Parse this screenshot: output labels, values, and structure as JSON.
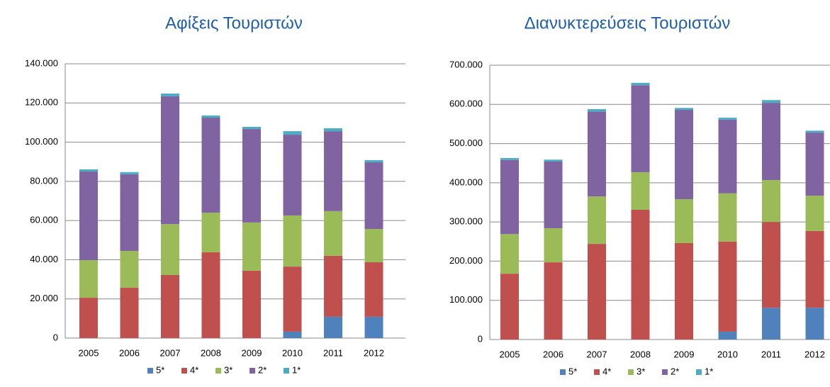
{
  "chart_data": [
    {
      "type": "stacked_bar",
      "title": "Αφίξεις Τουριστών",
      "categories": [
        "2005",
        "2006",
        "2007",
        "2008",
        "2009",
        "2010",
        "2011",
        "2012"
      ],
      "series": [
        {
          "name": "5*",
          "color": "#4f81bd",
          "values": [
            0,
            0,
            0,
            0,
            0,
            3300,
            10900,
            10900
          ]
        },
        {
          "name": "4*",
          "color": "#c0504d",
          "values": [
            20600,
            25700,
            32200,
            43800,
            34400,
            33200,
            31100,
            27800
          ]
        },
        {
          "name": "3*",
          "color": "#9bbb59",
          "values": [
            19200,
            18800,
            26000,
            20200,
            24600,
            26100,
            22800,
            17000
          ]
        },
        {
          "name": "2*",
          "color": "#8064a2",
          "values": [
            45200,
            39100,
            65200,
            48500,
            47700,
            41200,
            40800,
            34000
          ]
        },
        {
          "name": "1*",
          "color": "#4bacc6",
          "values": [
            1100,
            1100,
            1400,
            1100,
            1100,
            1800,
            1500,
            1100
          ]
        }
      ],
      "ylim": [
        0,
        140000
      ],
      "yticks": [
        0,
        {
          "value": 20000,
          "label": "20.000"
        },
        {
          "value": 40000,
          "label": "40.000"
        },
        {
          "value": 60000,
          "label": "60.000"
        },
        {
          "value": 80000,
          "label": "80.000"
        },
        {
          "value": 100000,
          "label": "100.000"
        },
        {
          "value": 120000,
          "label": "120.000"
        },
        {
          "value": 140000,
          "label": "140.000"
        }
      ],
      "grid": true,
      "legend": "bottom"
    },
    {
      "type": "stacked_bar",
      "title": "Διανυκτερεύσεις Τουριστών",
      "categories": [
        "2005",
        "2006",
        "2007",
        "2008",
        "2009",
        "2010",
        "2011",
        "2012"
      ],
      "series": [
        {
          "name": "5*",
          "color": "#4f81bd",
          "values": [
            0,
            0,
            0,
            0,
            0,
            20000,
            81000,
            81000
          ]
        },
        {
          "name": "4*",
          "color": "#c0504d",
          "values": [
            168000,
            197000,
            244000,
            331000,
            246000,
            230000,
            219000,
            196000
          ]
        },
        {
          "name": "3*",
          "color": "#9bbb59",
          "values": [
            101000,
            87000,
            121000,
            96000,
            112000,
            123000,
            107000,
            90000
          ]
        },
        {
          "name": "2*",
          "color": "#8064a2",
          "values": [
            189000,
            170000,
            217000,
            222000,
            228000,
            188000,
            197000,
            161000
          ]
        },
        {
          "name": "1*",
          "color": "#4bacc6",
          "values": [
            5000,
            5000,
            6000,
            6000,
            5000,
            5000,
            7000,
            5000
          ]
        }
      ],
      "ylim": [
        0,
        700000
      ],
      "yticks": [
        0,
        {
          "value": 100000,
          "label": "100.000"
        },
        {
          "value": 200000,
          "label": "200.000"
        },
        {
          "value": 300000,
          "label": "300.000"
        },
        {
          "value": 400000,
          "label": "400.000"
        },
        {
          "value": 500000,
          "label": "500.000"
        },
        {
          "value": 600000,
          "label": "600.000"
        },
        {
          "value": 700000,
          "label": "700.000"
        }
      ],
      "grid": true,
      "legend": "bottom"
    }
  ]
}
